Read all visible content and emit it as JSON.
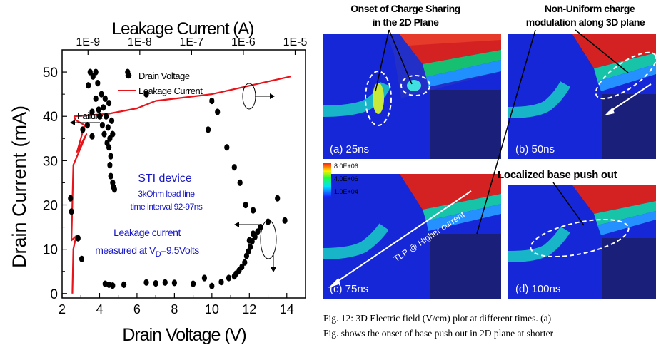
{
  "chart_data": {
    "type": "scatter",
    "xlabel": "Drain Voltage (V)",
    "ylabel": "Drain Current  (mA)",
    "top_xlabel": "Leakage Current (A)",
    "xlim": [
      2,
      15
    ],
    "ylim": [
      -1,
      55
    ],
    "xticks": [
      "2",
      "4",
      "6",
      "8",
      "10",
      "12",
      "14"
    ],
    "yticks": [
      "0",
      "10",
      "20",
      "30",
      "40",
      "50"
    ],
    "top_xticks": [
      "1E-9",
      "1E-8",
      "1E-7",
      "1E-6",
      "1E-5"
    ],
    "top_xlim_log10": [
      -9.5,
      -4.8
    ],
    "legend": [
      "Drain Voltage",
      "Leakage Current"
    ],
    "colors": {
      "points": "#000000",
      "leakage": "#e8141a",
      "annotation": "#1616c8"
    },
    "annotations": {
      "failure": "Failure",
      "device_title": "STI device",
      "device_line1": "3kOhm load line",
      "device_line2": "time interval 92-97ns",
      "leak_line1": "Leakage current",
      "leak_line2_prefix": "measured at V",
      "leak_line2_sub": "D",
      "leak_line2_suffix": "=9.5Volts"
    },
    "series": [
      {
        "name": "Drain Voltage",
        "points": [
          [
            2.45,
            21.5
          ],
          [
            2.5,
            18.5
          ],
          [
            2.85,
            12.5
          ],
          [
            3.05,
            7.8
          ],
          [
            3.1,
            37
          ],
          [
            3.35,
            38
          ],
          [
            3.4,
            47
          ],
          [
            3.5,
            50
          ],
          [
            3.6,
            41
          ],
          [
            3.6,
            35.5
          ],
          [
            3.65,
            49
          ],
          [
            3.8,
            50
          ],
          [
            3.8,
            44
          ],
          [
            3.9,
            47.5
          ],
          [
            3.95,
            41.5
          ],
          [
            4.0,
            40
          ],
          [
            4.1,
            45
          ],
          [
            4.15,
            38
          ],
          [
            4.2,
            42
          ],
          [
            4.25,
            36
          ],
          [
            4.3,
            44
          ],
          [
            4.35,
            40
          ],
          [
            4.4,
            34
          ],
          [
            4.45,
            37.5
          ],
          [
            4.5,
            43
          ],
          [
            4.5,
            33
          ],
          [
            4.55,
            29
          ],
          [
            4.6,
            31
          ],
          [
            4.6,
            26.5
          ],
          [
            4.65,
            39
          ],
          [
            4.7,
            25
          ],
          [
            4.75,
            24
          ],
          [
            4.8,
            23.5
          ],
          [
            4.55,
            35
          ],
          [
            4.7,
            36
          ],
          [
            5.5,
            50
          ],
          [
            6.5,
            45
          ],
          [
            4.3,
            2.2
          ],
          [
            4.5,
            2
          ],
          [
            4.7,
            1.8
          ],
          [
            5.3,
            2
          ],
          [
            6.5,
            2.5
          ],
          [
            7.0,
            2.3
          ],
          [
            7.5,
            2.5
          ],
          [
            8.0,
            2.4
          ],
          [
            9.0,
            2.2
          ],
          [
            9.6,
            3.5
          ],
          [
            10.0,
            1.7
          ],
          [
            10.5,
            2.6
          ],
          [
            10.9,
            3.5
          ],
          [
            11.2,
            3.9
          ],
          [
            11.3,
            4.5
          ],
          [
            11.45,
            5.2
          ],
          [
            11.6,
            6
          ],
          [
            11.75,
            7
          ],
          [
            11.85,
            8.5
          ],
          [
            11.95,
            9.5
          ],
          [
            12.05,
            10.5
          ],
          [
            12.15,
            11.8
          ],
          [
            12.3,
            12.8
          ],
          [
            12.45,
            14
          ],
          [
            12.6,
            15
          ],
          [
            12.0,
            12
          ],
          [
            12.2,
            13.5
          ],
          [
            9.8,
            37
          ],
          [
            10.0,
            43.5
          ],
          [
            10.3,
            41
          ],
          [
            10.8,
            33
          ],
          [
            11.2,
            28.5
          ],
          [
            11.5,
            25
          ],
          [
            11.8,
            20
          ],
          [
            12.2,
            18.8
          ],
          [
            13.0,
            16.2
          ],
          [
            13.5,
            21.5
          ],
          [
            13.9,
            16.5
          ]
        ]
      },
      {
        "name": "Leakage Current",
        "points": [
          [
            2.55,
            0
          ],
          [
            2.6,
            10
          ],
          [
            2.75,
            13
          ],
          [
            2.5,
            12
          ],
          [
            2.6,
            29
          ],
          [
            3.3,
            36
          ],
          [
            2.8,
            32
          ],
          [
            3.2,
            38
          ],
          [
            2.7,
            39.2
          ],
          [
            2.65,
            40
          ],
          [
            4.5,
            40.6
          ],
          [
            6,
            41.8
          ],
          [
            7,
            43.5
          ],
          [
            10,
            45
          ],
          [
            14.2,
            49
          ]
        ]
      }
    ]
  },
  "figure": {
    "labels": {
      "onset_line1": "Onset of Charge Sharing",
      "onset_line2": "in the 2D Plane",
      "nonuni_line1": "Non-Uniform charge",
      "nonuni_line2": "modulation along 3D plane",
      "localized": "Localized base push out",
      "tlp": "TLP @ Higher current"
    },
    "panels": [
      "(a) 25ns",
      "(b) 50ns",
      "(c) 75ns",
      "(d) 100ns"
    ],
    "colorbar": [
      "8.0E+06",
      "4.0E+06",
      "1.0E+04"
    ]
  },
  "caption": {
    "line1": "Fig. 12: 3D Electric field (V/cm) plot at different times. (a)",
    "line2": "Fig. shows the onset of base push out in 2D plane at shorter"
  }
}
